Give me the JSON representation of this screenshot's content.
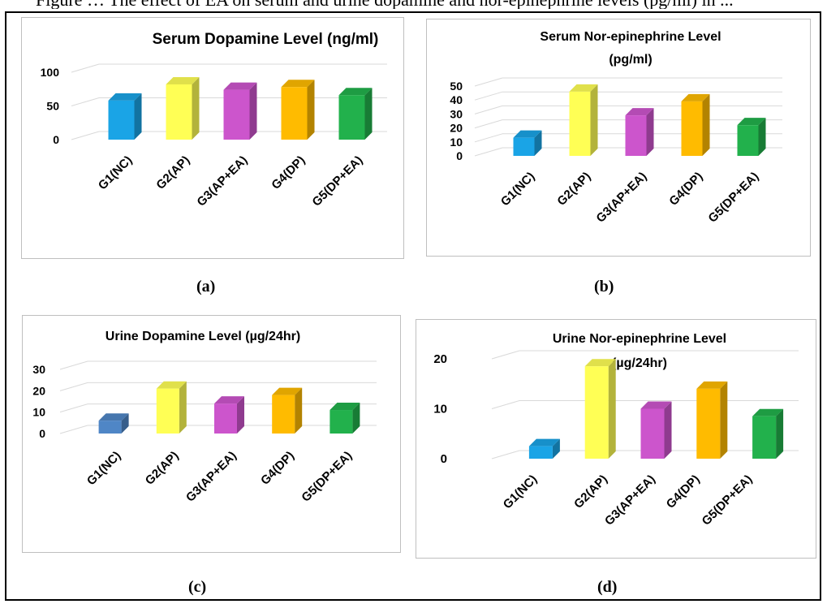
{
  "figure": {
    "top_caption": "Figure … The effect of EA on serum and urine dopamine and nor-epinephrine levels (pg/ml) in ...",
    "colors": {
      "blue": "#1aa4e6",
      "blue_alt": "#4f86c6",
      "yellow": "#ffff55",
      "magenta": "#cc55cc",
      "orange": "#ffbb00",
      "green": "#22b14c",
      "gridline": "#d9d9d9",
      "frame": "#000000"
    }
  },
  "panels": [
    {
      "label": "(a)"
    },
    {
      "label": "(b)"
    },
    {
      "label": "(c)"
    },
    {
      "label": "(d)"
    }
  ],
  "chart_data": [
    {
      "type": "bar",
      "title_lines": [
        "Serum Dopamine Level (ng/ml)"
      ],
      "categories": [
        "G1(NC)",
        "G2(AP)",
        "G3(AP+EA)",
        "G4(DP)",
        "G5(DP+EA)"
      ],
      "values": [
        58,
        82,
        74,
        78,
        66
      ],
      "ylim": [
        0,
        100
      ],
      "yticks": [
        "0",
        "50",
        "100"
      ],
      "bar_colors": [
        "#1aa4e6",
        "#ffff55",
        "#cc55cc",
        "#ffbb00",
        "#22b14c"
      ],
      "grid": true
    },
    {
      "type": "bar",
      "title_lines": [
        "Serum Nor-epinephrine Level",
        "(pg/ml)"
      ],
      "categories": [
        "G1(NC)",
        "G2(AP)",
        "G3(AP+EA)",
        "G4(DP)",
        "G5(DP+EA)"
      ],
      "values": [
        13,
        46,
        29,
        39,
        22
      ],
      "ylim": [
        0,
        50
      ],
      "yticks": [
        "0",
        "10",
        "20",
        "30",
        "40",
        "50"
      ],
      "bar_colors": [
        "#1aa4e6",
        "#ffff55",
        "#cc55cc",
        "#ffbb00",
        "#22b14c"
      ],
      "grid": true
    },
    {
      "type": "bar",
      "title_lines": [
        "Urine Dopamine Level  (µg/24hr)"
      ],
      "categories": [
        "G1(NC)",
        "G2(AP)",
        "G3(AP+EA)",
        "G4(DP)",
        "G5(DP+EA)"
      ],
      "values": [
        6,
        21,
        14,
        18,
        11
      ],
      "ylim": [
        0,
        30
      ],
      "yticks": [
        "0",
        "10",
        "20",
        "30"
      ],
      "bar_colors": [
        "#4f86c6",
        "#ffff55",
        "#cc55cc",
        "#ffbb00",
        "#22b14c"
      ],
      "grid": true
    },
    {
      "type": "bar",
      "title_lines": [
        "Urine Nor-epinephrine Level",
        "(µg/24hr)"
      ],
      "categories": [
        "G1(NC)",
        "G2(AP)",
        "G3(AP+EA)",
        "G4(DP)",
        "G5(DP+EA)"
      ],
      "values": [
        2.5,
        18.5,
        10,
        14,
        8.5
      ],
      "ylim": [
        0,
        20
      ],
      "yticks": [
        "0",
        "10",
        "20"
      ],
      "bar_colors": [
        "#1aa4e6",
        "#ffff55",
        "#cc55cc",
        "#ffbb00",
        "#22b14c"
      ],
      "grid": true
    }
  ]
}
